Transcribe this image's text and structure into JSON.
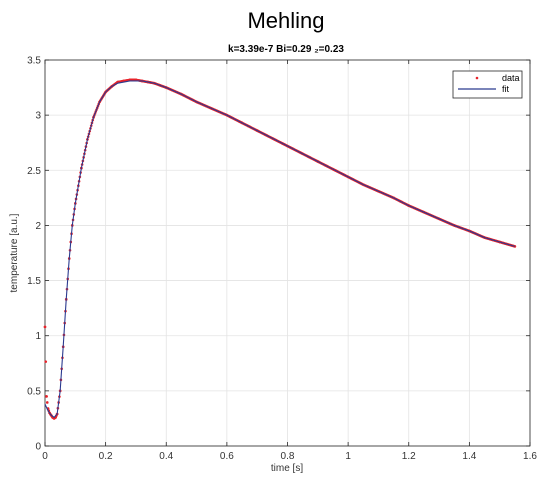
{
  "chart_data": {
    "type": "scatter",
    "title": "Mehling",
    "subtitle": "k=3.39e-7   Bi=0.29   ₂=0.23",
    "xlabel": "time [s]",
    "ylabel": "temperature [a.u.]",
    "xlim": [
      0,
      1.6
    ],
    "ylim": [
      0,
      3.5
    ],
    "xticks": [
      0,
      0.2,
      0.4,
      0.6,
      0.8,
      1,
      1.2,
      1.4,
      1.6
    ],
    "xtick_labels": [
      "0",
      "0.2",
      "0.4",
      "0.6",
      "0.8",
      "1",
      "1.2",
      "1.4",
      "1.6"
    ],
    "yticks": [
      0,
      0.5,
      1,
      1.5,
      2,
      2.5,
      3,
      3.5
    ],
    "ytick_labels": [
      "0",
      "0.5",
      "1",
      "1.5",
      "2",
      "2.5",
      "3",
      "3.5"
    ],
    "grid": true,
    "legend_position": "top-right",
    "series": [
      {
        "name": "data",
        "style": "points",
        "color": "#e8232b",
        "x": [
          0,
          0.005,
          0.01,
          0.015,
          0.02,
          0.025,
          0.03,
          0.035,
          0.04,
          0.05,
          0.06,
          0.07,
          0.08,
          0.09,
          0.1,
          0.12,
          0.14,
          0.16,
          0.18,
          0.2,
          0.22,
          0.24,
          0.26,
          0.28,
          0.3,
          0.32,
          0.34,
          0.36,
          0.38,
          0.4,
          0.45,
          0.5,
          0.55,
          0.6,
          0.65,
          0.7,
          0.75,
          0.8,
          0.85,
          0.9,
          0.95,
          1.0,
          1.05,
          1.1,
          1.15,
          1.2,
          1.25,
          1.3,
          1.35,
          1.4,
          1.45,
          1.5,
          1.55
        ],
        "y": [
          1.08,
          0.45,
          0.34,
          0.3,
          0.28,
          0.26,
          0.25,
          0.26,
          0.29,
          0.5,
          0.9,
          1.33,
          1.7,
          2.0,
          2.2,
          2.52,
          2.78,
          2.98,
          3.12,
          3.21,
          3.26,
          3.3,
          3.31,
          3.32,
          3.32,
          3.31,
          3.3,
          3.29,
          3.27,
          3.25,
          3.19,
          3.12,
          3.06,
          3.0,
          2.93,
          2.86,
          2.79,
          2.72,
          2.65,
          2.58,
          2.51,
          2.44,
          2.37,
          2.31,
          2.25,
          2.18,
          2.12,
          2.06,
          2.0,
          1.95,
          1.89,
          1.85,
          1.81
        ]
      },
      {
        "name": "fit",
        "style": "line",
        "color": "#2b3a8f",
        "x": [
          0,
          0.01,
          0.02,
          0.03,
          0.04,
          0.05,
          0.06,
          0.07,
          0.08,
          0.09,
          0.1,
          0.12,
          0.14,
          0.16,
          0.18,
          0.2,
          0.22,
          0.24,
          0.26,
          0.28,
          0.3,
          0.32,
          0.34,
          0.36,
          0.38,
          0.4,
          0.45,
          0.5,
          0.55,
          0.6,
          0.65,
          0.7,
          0.75,
          0.8,
          0.85,
          0.9,
          0.95,
          1.0,
          1.05,
          1.1,
          1.15,
          1.2,
          1.25,
          1.3,
          1.35,
          1.4,
          1.45,
          1.5,
          1.55
        ],
        "y": [
          0.38,
          0.32,
          0.28,
          0.26,
          0.29,
          0.5,
          0.9,
          1.33,
          1.7,
          2.0,
          2.2,
          2.52,
          2.78,
          2.98,
          3.12,
          3.21,
          3.26,
          3.29,
          3.3,
          3.31,
          3.31,
          3.31,
          3.3,
          3.29,
          3.27,
          3.25,
          3.19,
          3.12,
          3.06,
          3.0,
          2.93,
          2.86,
          2.79,
          2.72,
          2.65,
          2.58,
          2.51,
          2.44,
          2.37,
          2.31,
          2.25,
          2.18,
          2.12,
          2.06,
          2.0,
          1.95,
          1.89,
          1.85,
          1.81
        ]
      }
    ]
  }
}
